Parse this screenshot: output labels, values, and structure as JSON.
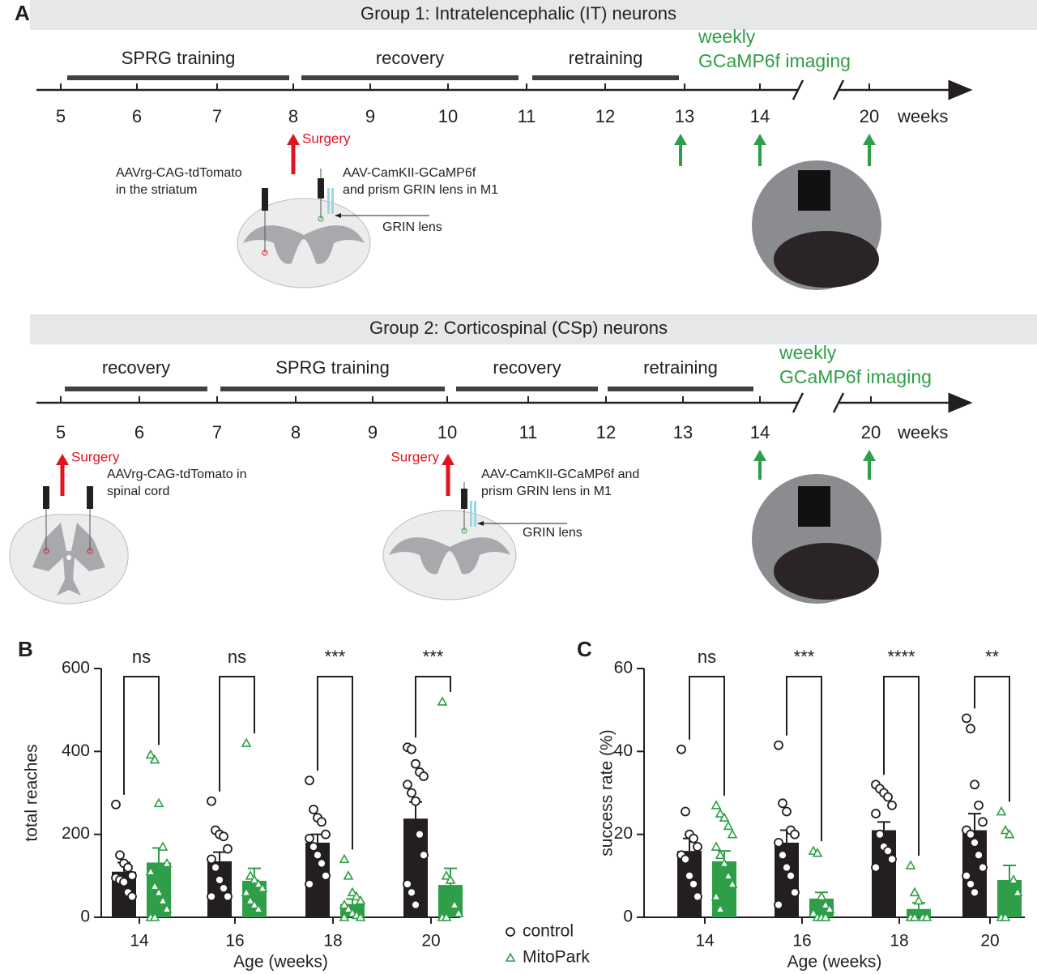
{
  "panel_labels": [
    "A",
    "B",
    "C"
  ],
  "panel_a": {
    "groups": [
      {
        "title": "Group 1: Intratelencephalic (IT) neurons",
        "phases": [
          "SPRG training",
          "recovery",
          "retraining"
        ],
        "ticks": [
          5,
          6,
          7,
          8,
          9,
          10,
          11,
          12,
          13,
          14,
          20
        ],
        "unit": "weeks",
        "imaging": [
          "weekly",
          "GCaMP6f imaging"
        ],
        "surgery_labels": [
          "Surgery"
        ],
        "annotations": [
          [
            "AAVrg-CAG-tdTomato",
            "in the striatum"
          ],
          [
            "AAV-CamKII-GCaMP6f",
            "and prism GRIN lens in M1"
          ]
        ],
        "grin_label": "GRIN lens"
      },
      {
        "title": "Group 2: Corticospinal (CSp) neurons",
        "phases": [
          "recovery",
          "SPRG training",
          "recovery",
          "retraining"
        ],
        "ticks": [
          5,
          6,
          7,
          8,
          9,
          10,
          11,
          12,
          13,
          14,
          20
        ],
        "unit": "weeks",
        "imaging": [
          "weekly",
          "GCaMP6f imaging"
        ],
        "surgery_labels": [
          "Surgery",
          "Surgery"
        ],
        "annotations": [
          [
            "AAVrg-CAG-tdTomato in",
            "spinal cord"
          ],
          [
            "AAV-CamKII-GCaMP6f and",
            "prism GRIN lens in M1"
          ]
        ],
        "grin_label": "GRIN lens"
      }
    ]
  },
  "chart_data": [
    {
      "type": "bar",
      "x_label": "Age (weeks)",
      "y_label": "total reaches",
      "categories": [
        "14",
        "16",
        "18",
        "20"
      ],
      "ylim": [
        0,
        600
      ],
      "yticks": [
        0,
        200,
        400,
        600
      ],
      "significance": [
        "ns",
        "ns",
        "***",
        "***"
      ],
      "series": [
        {
          "name": "control",
          "color": "#231f20",
          "values": [
            110,
            135,
            180,
            238
          ],
          "errors": [
            22,
            22,
            20,
            40
          ],
          "points": [
            [
              272,
              150,
              130,
              120,
              100,
              95,
              90,
              85,
              60,
              50
            ],
            [
              280,
              210,
              200,
              195,
              165,
              140,
              120,
              90,
              70,
              50,
              50
            ],
            [
              330,
              260,
              240,
              230,
              200,
              190,
              170,
              150,
              130,
              100,
              80
            ],
            [
              410,
              405,
              370,
              350,
              340,
              320,
              300,
              280,
              200,
              150,
              80,
              60,
              30
            ]
          ]
        },
        {
          "name": "MitoPark",
          "color": "#2e9e48",
          "values": [
            132,
            88,
            32,
            78
          ],
          "errors": [
            35,
            30,
            12,
            40
          ],
          "points": [
            [
              392,
              380,
              275,
              170,
              130,
              110,
              75,
              60,
              40,
              20,
              0,
              0
            ],
            [
              420,
              100,
              90,
              80,
              70,
              60,
              40,
              30,
              20
            ],
            [
              140,
              100,
              60,
              50,
              40,
              30,
              20,
              10,
              5,
              0,
              0
            ],
            [
              520,
              100,
              90,
              30,
              10,
              0,
              0
            ]
          ]
        }
      ]
    },
    {
      "type": "bar",
      "x_label": "Age (weeks)",
      "y_label": "success rate (%)",
      "categories": [
        "14",
        "16",
        "18",
        "20"
      ],
      "ylim": [
        0,
        60
      ],
      "yticks": [
        0,
        20,
        40,
        60
      ],
      "significance": [
        "ns",
        "***",
        "****",
        "**"
      ],
      "series": [
        {
          "color": "#231f20",
          "values": [
            16,
            18,
            21,
            21
          ],
          "errors": [
            3,
            3,
            2,
            4
          ],
          "points": [
            [
              40.5,
              25.5,
              20,
              19,
              17,
              15,
              14,
              10,
              8,
              5
            ],
            [
              41.5,
              27.5,
              25.5,
              21,
              20,
              18,
              15,
              12,
              10,
              6,
              3
            ],
            [
              32,
              31,
              30,
              29,
              27,
              25,
              20,
              17,
              16,
              14,
              12
            ],
            [
              48,
              45.5,
              32,
              27,
              23,
              21,
              20,
              18,
              15,
              12,
              10,
              8,
              6
            ]
          ]
        },
        {
          "color": "#2e9e48",
          "values": [
            13.5,
            4.5,
            2,
            9
          ],
          "errors": [
            2.5,
            1.5,
            1.5,
            3.5
          ],
          "points": [
            [
              27,
              25,
              24,
              22,
              20,
              17,
              15,
              13,
              10,
              8,
              5,
              2
            ],
            [
              16,
              15.5,
              5,
              3,
              2,
              1,
              0,
              0,
              0
            ],
            [
              12.5,
              6,
              4,
              0,
              0,
              0,
              0
            ],
            [
              25.5,
              21,
              20,
              9,
              6,
              0,
              0
            ]
          ]
        }
      ]
    }
  ]
}
